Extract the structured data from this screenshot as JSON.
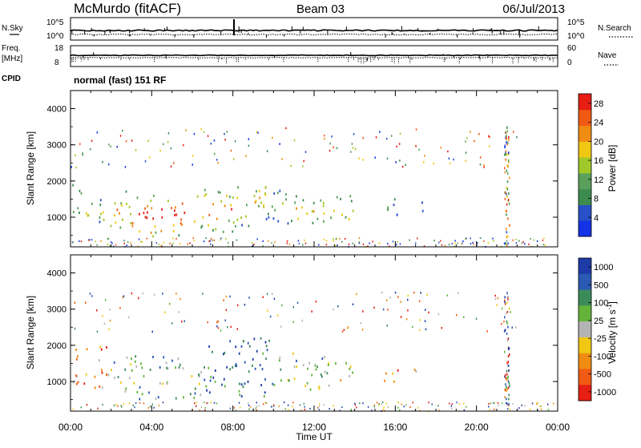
{
  "header": {
    "station": "McMurdo (fitACF)",
    "beam": "Beam 03",
    "date": "06/Jul/2013"
  },
  "noise_panel": {
    "left_label": "N.Sky",
    "right_label": "N.Search",
    "tick_labels": [
      "10^5",
      "10^0"
    ]
  },
  "freq_panel": {
    "left_label_top": "Freq.",
    "left_label_unit": "[MHz]",
    "left_ticks": [
      "18",
      "8"
    ],
    "right_ticks": [
      "60",
      "0"
    ],
    "right_label": "Nave"
  },
  "cpid": {
    "label": "CPID",
    "value": "normal (fast) 151 RF"
  },
  "colors": {
    "power_scale": [
      "#1432e6",
      "#2850c8",
      "#3c8c50",
      "#5aa05a",
      "#a0c828",
      "#f0c814",
      "#f08c14",
      "#f05a14",
      "#e61e14"
    ],
    "velocity_scale": [
      "#1e3ca8",
      "#2a5ab4",
      "#3c8c5a",
      "#64b43c",
      "#b4b4b4",
      "#f0c814",
      "#f08c14",
      "#f05a14",
      "#e61e14"
    ]
  },
  "chart_data": [
    {
      "type": "heatmap",
      "title": "Power",
      "ylabel": "Slant Range [km]",
      "xlabel": "",
      "ylim": [
        180,
        4500
      ],
      "xlim_hours": [
        0,
        24
      ],
      "y_ticks": [
        "1000",
        "2000",
        "3000",
        "4000"
      ],
      "colorbar": {
        "label": "Power [dB]",
        "ticks": [
          "4",
          "8",
          "12",
          "16",
          "20",
          "24",
          "28"
        ],
        "range": [
          0,
          30
        ]
      },
      "regions": [
        {
          "t0": 0.0,
          "t1": 0.5,
          "r0": 900,
          "r1": 2000,
          "level": 0.35
        },
        {
          "t0": 0.5,
          "t1": 1.6,
          "r0": 700,
          "r1": 1600,
          "level": 0.45
        },
        {
          "t0": 1.6,
          "t1": 3.0,
          "r0": 600,
          "r1": 1700,
          "level": 0.6
        },
        {
          "t0": 3.0,
          "t1": 6.0,
          "r0": 450,
          "r1": 1600,
          "level": 0.85
        },
        {
          "t0": 6.0,
          "t1": 8.0,
          "r0": 550,
          "r1": 1800,
          "level": 0.65
        },
        {
          "t0": 8.0,
          "t1": 9.6,
          "r0": 700,
          "r1": 2100,
          "level": 0.5
        },
        {
          "t0": 9.6,
          "t1": 11.0,
          "r0": 800,
          "r1": 1800,
          "level": 0.45
        },
        {
          "t0": 11.0,
          "t1": 14.0,
          "r0": 750,
          "r1": 1600,
          "level": 0.5
        },
        {
          "t0": 15.3,
          "t1": 16.1,
          "r0": 950,
          "r1": 1600,
          "level": 0.35
        },
        {
          "t0": 16.9,
          "t1": 17.4,
          "r0": 1150,
          "r1": 1600,
          "level": 0.3
        }
      ]
    },
    {
      "type": "heatmap",
      "title": "Velocity",
      "ylabel": "Slant Range [km]",
      "xlabel": "Time UT",
      "ylim": [
        180,
        4500
      ],
      "xlim_hours": [
        0,
        24
      ],
      "y_ticks": [
        "1000",
        "2000",
        "3000",
        "4000"
      ],
      "x_ticks": [
        "00:00",
        "04:00",
        "08:00",
        "12:00",
        "16:00",
        "20:00",
        "00:00"
      ],
      "colorbar": {
        "label": "Velocity [m s^-1]",
        "ticks": [
          "1000",
          "500",
          "100",
          "25",
          "-25",
          "-100",
          "-500",
          "-1000"
        ],
        "range": [
          -1000,
          1000
        ]
      },
      "regions": [
        {
          "t0": 0.0,
          "t1": 2.0,
          "r0": 800,
          "r1": 2000,
          "level": 0.3
        },
        {
          "t0": 2.0,
          "t1": 3.0,
          "r0": 600,
          "r1": 1700,
          "level": 0.6
        },
        {
          "t0": 3.0,
          "t1": 6.5,
          "r0": 500,
          "r1": 1700,
          "level": 0.65
        },
        {
          "t0": 6.5,
          "t1": 10.0,
          "r0": 550,
          "r1": 2200,
          "level": 0.82
        },
        {
          "t0": 10.0,
          "t1": 13.0,
          "r0": 750,
          "r1": 1800,
          "level": 0.6
        },
        {
          "t0": 13.0,
          "t1": 14.0,
          "r0": 850,
          "r1": 1500,
          "level": 0.5
        },
        {
          "t0": 15.3,
          "t1": 16.1,
          "r0": 950,
          "r1": 1600,
          "level": 0.3
        },
        {
          "t0": 16.9,
          "t1": 17.4,
          "r0": 1150,
          "r1": 1600,
          "level": 0.28
        }
      ]
    }
  ]
}
